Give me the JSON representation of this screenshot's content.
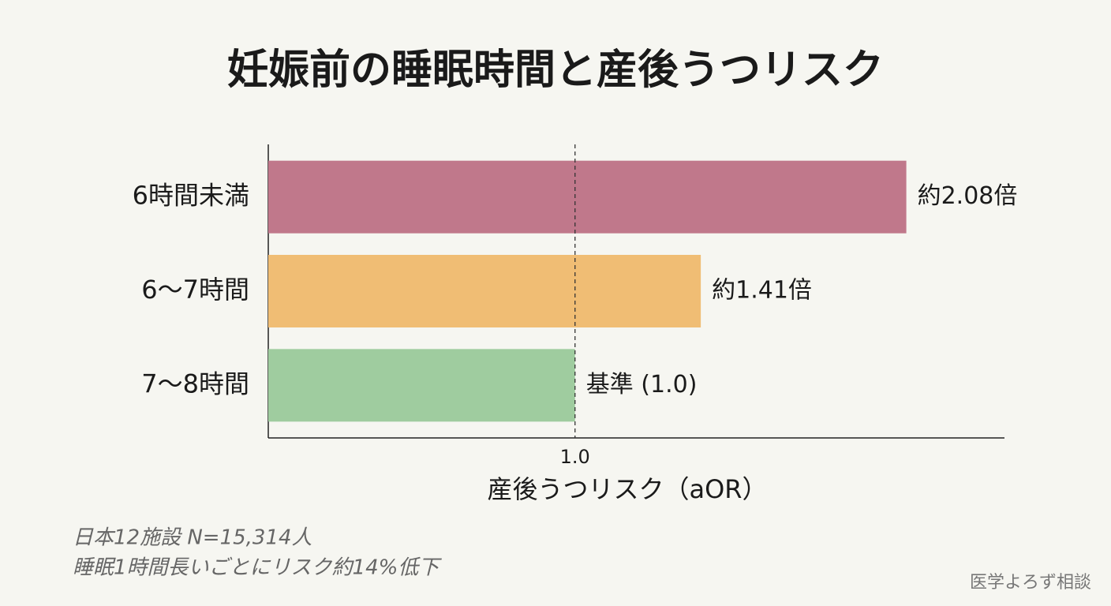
{
  "chart_data": {
    "type": "barh",
    "title": "妊娠前の睡眠時間と産後うつリスク",
    "categories": [
      "6時間未満",
      "6〜7時間",
      "7〜8時間"
    ],
    "values": [
      2.08,
      1.41,
      1.0
    ],
    "value_labels": [
      "約2.08倍",
      "約1.41倍",
      "基準 (1.0)"
    ],
    "colors": [
      "#c0788b",
      "#f0bd74",
      "#9fcc9f"
    ],
    "xlabel": "産後うつリスク（aOR）",
    "xlim": [
      0,
      2.4
    ],
    "xticks": [
      {
        "value": 1,
        "label": "1.0"
      }
    ],
    "notes": [
      "日本12施設 N=15,314人",
      "睡眠1時間長いごとにリスク約14%低下"
    ],
    "credit": "医学よろず相談"
  }
}
